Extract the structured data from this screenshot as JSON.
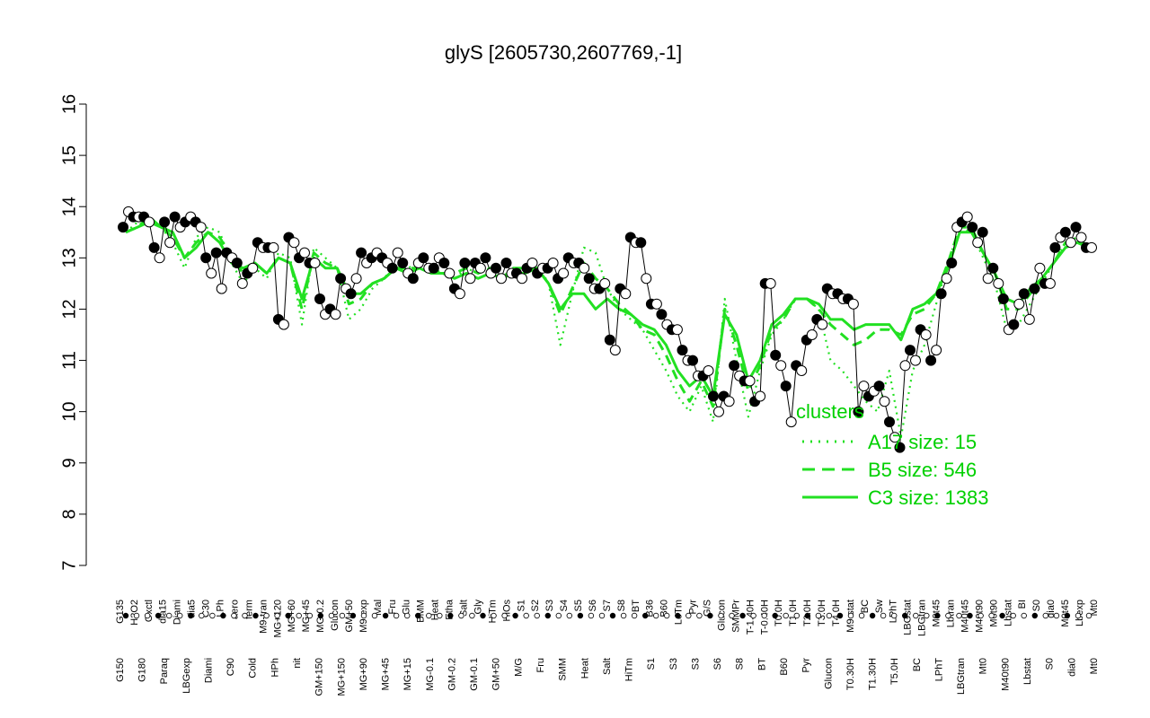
{
  "chart_data": {
    "type": "line",
    "title": "glyS [2605730,2607769,-1]",
    "ylim": [
      7,
      16
    ],
    "yticks": [
      7,
      8,
      9,
      10,
      11,
      12,
      13,
      14,
      15,
      16
    ],
    "grid": false,
    "legend": {
      "title": "clusters",
      "position": "right",
      "entries": [
        {
          "label": "A17 size: 15",
          "style": "dotted",
          "color": "#00e000"
        },
        {
          "label": "B5 size: 546",
          "style": "dashed",
          "color": "#00e000"
        },
        {
          "label": "C3 size: 1383",
          "style": "solid",
          "color": "#00e000"
        }
      ]
    },
    "upper_labels": [
      "G135",
      "H2O2",
      "Oxctl",
      "dia15",
      "Diami",
      "dia5",
      "C30",
      "LPh",
      "aero",
      "ferm",
      "M9-tran",
      "MG+120",
      "MG+60",
      "MG+45",
      "MG-0.2",
      "Glucon",
      "GM+50",
      "M9-exp",
      "Mal",
      "Fru",
      "Glu",
      "BMM",
      "Heat",
      "Etha",
      "Salt",
      "Gly",
      "HiTm",
      "HiOs",
      "S1",
      "S2",
      "S3",
      "S4",
      "S5",
      "S6",
      "S7",
      "S8",
      "BT",
      "B36",
      "B60",
      "LoTm",
      "Pyr",
      "G/S",
      "Glucon",
      "SMMPr",
      "T-1.40H",
      "T-0.40H",
      "T0.0H",
      "T1.0H",
      "T2.0H",
      "T3.0H",
      "T4.0H",
      "M9-stat",
      "BC",
      "Sw",
      "LPhT",
      "LBGstat",
      "LBGtran",
      "M0t45",
      "Lbtran",
      "M40t45",
      "M40t90",
      "M0t90",
      "Lbstat",
      "BI",
      "S0",
      "dia0",
      "M0t45",
      "Lbexp",
      "Mt0"
    ],
    "lower_labels": [
      "G150",
      "G180",
      "Paraq",
      "LBGexp",
      "Diami",
      "C90",
      "Cold",
      "HPh",
      "nit",
      "GM+150",
      "MG+150",
      "MG+90",
      "MG+45",
      "MG+15",
      "MG-0.1",
      "GM-0.2",
      "GM-0.1",
      "GM+50",
      "M/G",
      "Fru",
      "SMM",
      "Heat",
      "Salt",
      "HiTm",
      "S1",
      "S3",
      "S3",
      "S6",
      "S8",
      "BT",
      "B60",
      "Pyr",
      "Glucon",
      "T0.30H",
      "T1.30H",
      "T5.0H",
      "BC",
      "LPhT",
      "LBGtran",
      "Mt0",
      "M40t90",
      "Lbstat",
      "S0",
      "dia0",
      "Mt0"
    ],
    "series": [
      {
        "name": "A17 size: 15",
        "style": "dotted",
        "values": [
          13.5,
          13.7,
          13.8,
          13.6,
          13.3,
          12.8,
          13.4,
          13.6,
          13.5,
          12.9,
          12.5,
          12.8,
          12.6,
          13.1,
          13.0,
          11.7,
          13.2,
          13.0,
          12.8,
          11.8,
          12.0,
          12.4,
          12.6,
          12.9,
          12.8,
          12.9,
          12.8,
          12.7,
          12.6,
          12.8,
          12.7,
          12.8,
          12.6,
          12.8,
          12.8,
          12.9,
          12.5,
          11.3,
          12.3,
          13.2,
          13.1,
          12.4,
          12.0,
          11.8,
          11.6,
          11.2,
          10.8,
          10.3,
          10.0,
          10.5,
          9.8,
          12.2,
          11.0,
          9.9,
          10.8,
          11.5,
          11.8,
          12.2,
          12.2,
          12.0,
          11.0,
          10.8,
          10.5,
          10.2,
          10.0,
          10.8,
          9.5,
          10.8,
          11.3,
          12.1,
          12.9,
          13.6,
          13.5,
          13.0,
          12.5,
          11.6,
          11.7,
          12.1,
          12.5,
          12.9,
          13.3,
          13.4,
          13.2
        ]
      },
      {
        "name": "B5 size: 546",
        "style": "dashed",
        "values": [
          13.5,
          13.6,
          13.8,
          13.6,
          13.4,
          13.0,
          13.3,
          13.5,
          13.4,
          13.0,
          12.7,
          12.9,
          12.7,
          13.0,
          12.9,
          12.0,
          13.1,
          12.9,
          12.8,
          12.1,
          12.2,
          12.5,
          12.6,
          12.8,
          12.8,
          12.8,
          12.8,
          12.7,
          12.7,
          12.8,
          12.7,
          12.8,
          12.6,
          12.8,
          12.8,
          12.8,
          12.5,
          11.9,
          12.4,
          12.9,
          12.6,
          12.4,
          12.1,
          11.9,
          11.6,
          11.5,
          11.1,
          10.6,
          10.2,
          10.6,
          10.1,
          12.0,
          11.3,
          10.4,
          10.9,
          11.6,
          11.8,
          12.2,
          12.2,
          12.0,
          11.7,
          11.5,
          11.3,
          11.4,
          11.6,
          11.6,
          11.5,
          11.9,
          12.0,
          12.3,
          12.9,
          13.6,
          13.6,
          13.1,
          12.7,
          12.0,
          12.0,
          12.3,
          12.6,
          12.9,
          13.3,
          13.4,
          13.2
        ]
      },
      {
        "name": "C3 size: 1383",
        "style": "solid",
        "values": [
          13.5,
          13.6,
          13.7,
          13.6,
          13.5,
          13.0,
          13.2,
          13.5,
          13.3,
          12.9,
          12.8,
          12.9,
          12.7,
          13.0,
          12.9,
          12.2,
          13.0,
          12.8,
          12.8,
          12.3,
          12.3,
          12.5,
          12.6,
          12.8,
          12.7,
          12.8,
          12.7,
          12.7,
          12.6,
          12.7,
          12.6,
          12.7,
          12.6,
          12.7,
          12.7,
          12.8,
          12.5,
          12.0,
          12.3,
          12.3,
          12.0,
          12.2,
          12.0,
          11.9,
          11.7,
          11.6,
          11.3,
          10.8,
          10.5,
          10.7,
          10.3,
          11.9,
          11.5,
          10.6,
          11.0,
          11.7,
          11.9,
          12.2,
          12.2,
          12.1,
          11.8,
          11.8,
          11.6,
          11.7,
          11.7,
          11.7,
          11.4,
          12.0,
          12.1,
          12.3,
          12.8,
          13.5,
          13.5,
          13.1,
          12.7,
          12.2,
          12.1,
          12.4,
          12.6,
          12.9,
          13.2,
          13.3,
          13.2
        ]
      }
    ],
    "sample_points": [
      [
        13.6,
        13.9
      ],
      [
        13.8,
        13.8
      ],
      [
        13.8,
        13.7
      ],
      [
        13.2,
        13.0
      ],
      [
        13.7,
        13.3
      ],
      [
        13.8,
        13.6
      ],
      [
        13.7,
        13.8
      ],
      [
        13.7,
        13.6
      ],
      [
        13.0,
        12.7
      ],
      [
        13.1,
        12.4
      ],
      [
        13.1,
        13.0
      ],
      [
        12.9,
        12.5
      ],
      [
        12.7,
        12.8
      ],
      [
        13.3,
        13.2
      ],
      [
        13.2,
        13.2
      ],
      [
        11.8,
        11.7
      ],
      [
        13.4,
        13.3
      ],
      [
        13.0,
        13.1
      ],
      [
        12.9,
        12.9
      ],
      [
        12.2,
        11.9
      ],
      [
        12.0,
        11.9
      ],
      [
        12.6,
        12.4
      ],
      [
        12.3,
        12.6
      ],
      [
        13.1,
        12.9
      ],
      [
        13.0,
        13.1
      ],
      [
        13.0,
        12.9
      ],
      [
        12.8,
        13.1
      ],
      [
        12.9,
        12.7
      ],
      [
        12.6,
        12.9
      ],
      [
        13.0,
        12.8
      ],
      [
        12.8,
        13.0
      ],
      [
        12.9,
        12.7
      ],
      [
        12.4,
        12.3
      ],
      [
        12.9,
        12.6
      ],
      [
        12.9,
        12.8
      ],
      [
        13.0,
        12.7
      ],
      [
        12.8,
        12.6
      ],
      [
        12.9,
        12.7
      ],
      [
        12.7,
        12.6
      ],
      [
        12.8,
        12.9
      ],
      [
        12.7,
        12.8
      ],
      [
        12.8,
        12.9
      ],
      [
        12.6,
        12.7
      ],
      [
        13.0,
        12.9
      ],
      [
        12.9,
        12.8
      ],
      [
        12.6,
        12.4
      ],
      [
        12.4,
        12.5
      ],
      [
        11.4,
        11.2
      ],
      [
        12.4,
        12.3
      ],
      [
        13.4,
        13.3
      ],
      [
        13.3,
        12.6
      ],
      [
        12.1,
        12.1
      ],
      [
        11.9,
        11.7
      ],
      [
        11.6,
        11.6
      ],
      [
        11.2,
        11.0
      ],
      [
        11.0,
        10.7
      ],
      [
        10.7,
        10.8
      ],
      [
        10.3,
        10.0
      ],
      [
        10.3,
        10.2
      ],
      [
        10.9,
        10.7
      ],
      [
        10.6,
        10.6
      ],
      [
        10.2,
        10.3
      ],
      [
        12.5,
        12.5
      ],
      [
        11.1,
        10.9
      ],
      [
        10.5,
        9.8
      ],
      [
        10.9,
        10.8
      ],
      [
        11.4,
        11.5
      ],
      [
        11.8,
        11.7
      ],
      [
        12.4,
        12.3
      ],
      [
        12.3,
        12.2
      ],
      [
        12.2,
        12.1
      ],
      [
        10.0,
        10.5
      ],
      [
        10.3,
        10.4
      ],
      [
        10.5,
        10.2
      ],
      [
        9.8,
        9.5
      ],
      [
        9.3,
        10.9
      ],
      [
        11.2,
        11.0
      ],
      [
        11.6,
        11.5
      ],
      [
        11.0,
        11.2
      ],
      [
        12.3,
        12.6
      ],
      [
        12.9,
        13.6
      ],
      [
        13.7,
        13.8
      ],
      [
        13.6,
        13.3
      ],
      [
        13.5,
        12.6
      ],
      [
        12.8,
        12.5
      ],
      [
        12.2,
        11.6
      ],
      [
        11.7,
        12.1
      ],
      [
        12.3,
        11.8
      ],
      [
        12.4,
        12.8
      ],
      [
        12.5,
        12.5
      ],
      [
        13.2,
        13.4
      ],
      [
        13.5,
        13.3
      ],
      [
        13.6,
        13.4
      ],
      [
        13.2,
        13.2
      ]
    ]
  }
}
